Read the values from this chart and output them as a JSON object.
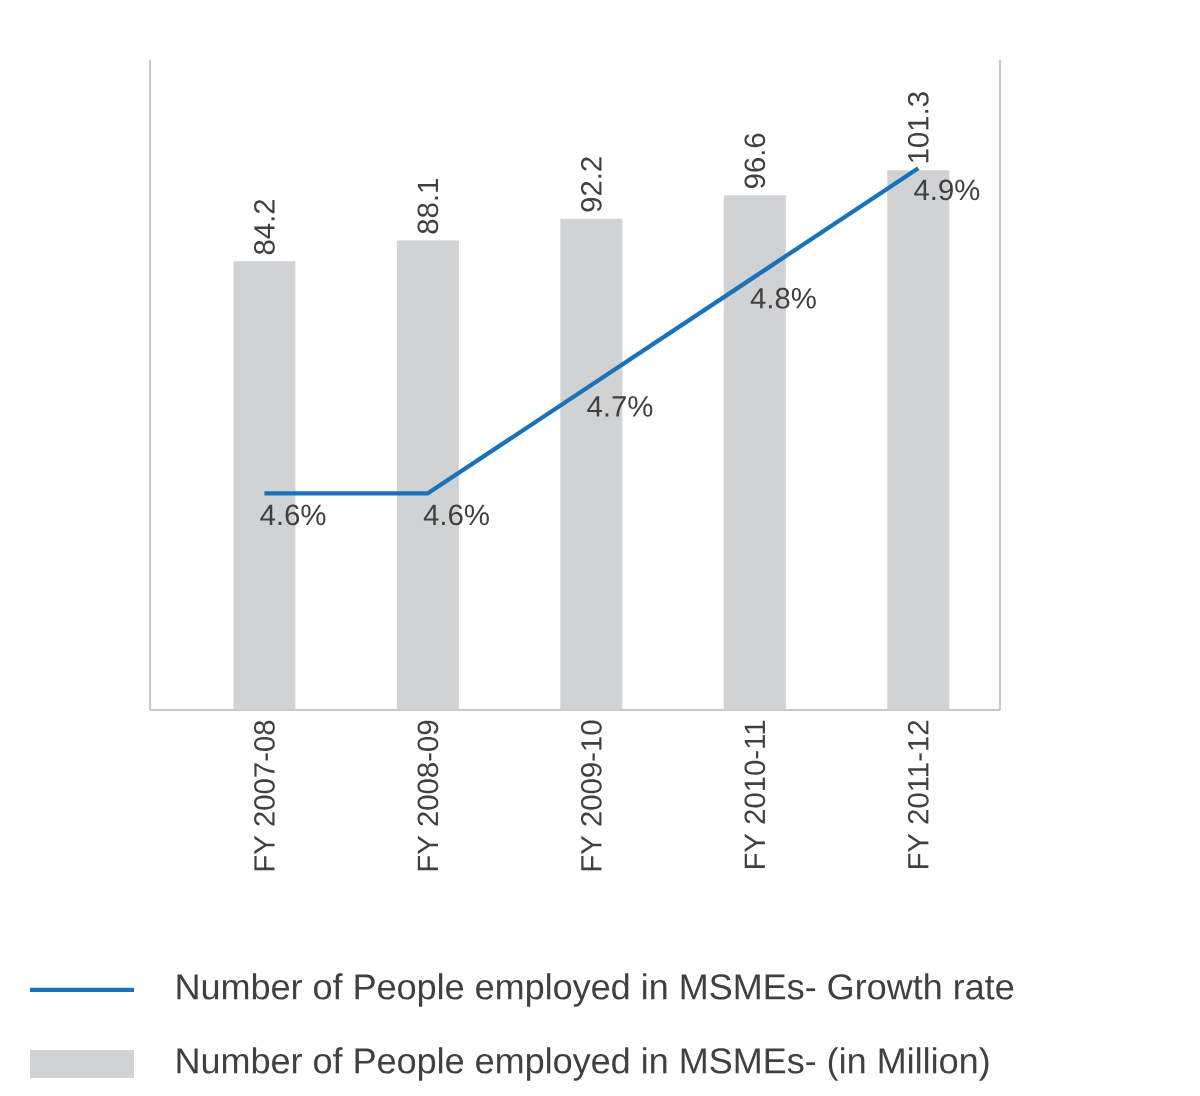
{
  "chart_data": {
    "type": "bar",
    "categories": [
      "FY 2007-08",
      "FY 2008-09",
      "FY 2009-10",
      "FY 2010-11",
      "FY 2011-12"
    ],
    "series": [
      {
        "name": "Number of People employed in MSMEs- Growth rate",
        "type": "line",
        "axis": "y2",
        "color": "#1a73ba",
        "values": [
          4.6,
          4.6,
          4.7,
          4.8,
          4.9
        ],
        "value_labels": [
          "4.6%",
          "4.6%",
          "4.7%",
          "4.8%",
          "4.9%"
        ]
      },
      {
        "name": "Number of People employed in MSMEs- (in Million)",
        "color": "#d1d2d4",
        "values": [
          84.2,
          88.1,
          92.2,
          96.6,
          101.3
        ],
        "value_labels": [
          "84.2",
          "88.1",
          "92.2",
          "96.6",
          "101.3"
        ]
      }
    ],
    "ylim": [
      0,
      122
    ],
    "y2lim": [
      4.4,
      5.0
    ],
    "tick_labels": "x",
    "grid": false,
    "legend": "bottom",
    "marker": "none",
    "line_style": "solid"
  }
}
